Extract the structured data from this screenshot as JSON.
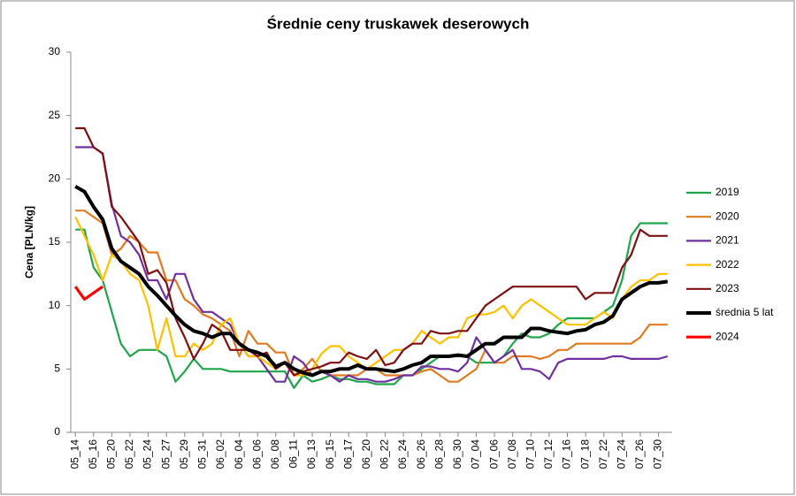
{
  "chart_data": {
    "type": "line",
    "title": "Średnie ceny truskawek deserowych",
    "y_label": "Cena [PLN/kg]",
    "categories": [
      "05_14",
      null,
      "05_16",
      null,
      "05_20",
      null,
      "05_22",
      null,
      "05_24",
      null,
      "05_27",
      null,
      "05_29",
      null,
      "05_31",
      null,
      "06_02",
      null,
      "06_04",
      null,
      "06_06",
      null,
      "06_08",
      null,
      "06_11",
      null,
      "06_13",
      null,
      "06_15",
      null,
      "06_17",
      null,
      "06_20",
      null,
      "06_22",
      null,
      "06_24",
      null,
      "06_26",
      null,
      "06_28",
      null,
      "06_30",
      null,
      "07_04",
      null,
      "07_06",
      null,
      "07_08",
      null,
      "07_10",
      null,
      "07_12",
      null,
      "07_16",
      null,
      "07_18",
      null,
      "07_22",
      null,
      "07_24",
      null,
      "07_26",
      null,
      "07_30",
      null
    ],
    "series": [
      {
        "name": "2019",
        "color": "#1fa64a",
        "width": 2.2,
        "values": [
          16,
          16,
          13,
          12,
          9.5,
          7,
          6,
          6.5,
          6.5,
          6.5,
          6,
          4,
          4.8,
          5.8,
          5,
          5,
          5,
          4.8,
          4.8,
          4.8,
          4.8,
          4.8,
          4.8,
          4.8,
          3.5,
          4.5,
          4,
          4.2,
          4.5,
          4.2,
          4.2,
          4,
          4,
          3.8,
          3.8,
          3.8,
          4.5,
          4.5,
          5,
          5.5,
          6,
          6,
          6,
          6,
          5.5,
          5.5,
          5.5,
          6,
          7,
          7.8,
          7.5,
          7.5,
          7.8,
          8.5,
          9,
          9,
          9,
          9,
          9.5,
          10,
          12,
          15.5,
          16.5,
          16.5,
          16.5,
          16.5
        ]
      },
      {
        "name": "2020",
        "color": "#e07b22",
        "width": 2.2,
        "values": [
          17.5,
          17.5,
          17,
          16.5,
          14,
          14.5,
          15.5,
          15,
          14.2,
          14.2,
          12,
          12,
          10.5,
          10,
          9.3,
          9,
          8.5,
          8,
          6,
          8,
          7,
          7,
          6.3,
          6.3,
          4.5,
          5,
          5.8,
          4.8,
          4.5,
          4.5,
          4.5,
          4.5,
          5,
          5,
          4.5,
          4.5,
          4.5,
          4.5,
          4.8,
          5,
          4.5,
          4,
          4,
          4.5,
          5,
          6.5,
          5.5,
          5.5,
          6,
          6,
          6,
          5.8,
          6,
          6.5,
          6.5,
          7,
          7,
          7,
          7,
          7,
          7,
          7,
          7.5,
          8.5,
          8.5,
          8.5
        ]
      },
      {
        "name": "2021",
        "color": "#7030a0",
        "width": 2.2,
        "values": [
          22.5,
          22.5,
          22.5,
          22,
          18,
          15.5,
          15,
          14,
          12,
          12,
          10.5,
          12.5,
          12.5,
          10.5,
          9.5,
          9.5,
          9,
          8.5,
          7,
          6,
          6,
          5,
          4,
          4,
          6,
          5.5,
          4.5,
          4.8,
          4.5,
          4,
          4.5,
          4.2,
          4.2,
          4,
          4,
          4.2,
          4.5,
          4.5,
          5.2,
          5.2,
          5,
          5,
          4.8,
          5.5,
          7.5,
          6.5,
          5.5,
          6,
          6.5,
          5,
          5,
          4.8,
          4.2,
          5.5,
          5.8,
          5.8,
          5.8,
          5.8,
          5.8,
          6,
          6,
          5.8,
          5.8,
          5.8,
          5.8,
          6
        ]
      },
      {
        "name": "2022",
        "color": "#ffc000",
        "width": 2.2,
        "values": [
          17,
          15.5,
          14,
          12,
          14,
          13.5,
          12.5,
          12,
          10,
          6.5,
          9,
          6,
          6,
          7,
          6.5,
          7,
          8.5,
          9,
          7,
          6,
          6,
          5.5,
          5,
          5.5,
          4.5,
          4.5,
          5,
          6.2,
          6.8,
          6.8,
          6,
          5.5,
          5,
          5.5,
          6,
          6.5,
          6.5,
          7,
          8,
          7.5,
          7,
          7.5,
          7.5,
          9,
          9.3,
          9.3,
          9.5,
          10,
          9,
          10,
          10.5,
          10,
          9.5,
          9,
          8.5,
          8.5,
          8.5,
          9,
          9.5,
          9,
          10.5,
          11.5,
          12,
          12,
          12.5,
          12.5
        ]
      },
      {
        "name": "2023",
        "color": "#7f1010",
        "width": 2.2,
        "values": [
          24,
          24,
          22.5,
          22,
          17.8,
          17,
          16,
          15,
          12.5,
          12.8,
          11.8,
          9,
          7.5,
          5.8,
          7,
          8.5,
          8,
          6.5,
          6.5,
          6.5,
          6,
          6.3,
          5,
          5.5,
          4.5,
          4.8,
          5,
          5.2,
          5.5,
          5.5,
          6.3,
          6,
          5.8,
          6.5,
          5.3,
          5.5,
          6.5,
          7,
          7,
          8,
          7.8,
          7.8,
          8,
          8,
          9,
          10,
          10.5,
          11,
          11.5,
          11.5,
          11.5,
          11.5,
          11.5,
          11.5,
          11.5,
          11.5,
          10.5,
          11,
          11,
          11,
          13,
          14,
          16,
          15.5,
          15.5,
          15.5
        ]
      },
      {
        "name": "średnia 5 lat",
        "color": "#000000",
        "width": 4,
        "values": [
          19.4,
          19,
          17.8,
          16.8,
          14.5,
          13.5,
          13,
          12.5,
          11.5,
          10.8,
          10,
          9.2,
          8.5,
          8,
          7.8,
          7.5,
          7.8,
          7.8,
          7,
          6.5,
          6.3,
          6,
          5.2,
          5.5,
          5,
          4.7,
          4.5,
          4.8,
          4.8,
          5,
          5,
          5.3,
          5,
          5,
          4.9,
          4.8,
          5,
          5.3,
          5.5,
          6,
          6,
          6,
          6.1,
          6,
          6.5,
          7,
          7,
          7.5,
          7.5,
          7.5,
          8.2,
          8.2,
          8,
          7.9,
          7.8,
          8,
          8.1,
          8.5,
          8.7,
          9.2,
          10.5,
          11,
          11.5,
          11.8,
          11.8,
          11.9
        ]
      },
      {
        "name": "2024",
        "color": "#ff0000",
        "width": 3.2,
        "values": [
          11.5,
          10.5,
          11,
          11.5,
          null,
          null,
          null,
          null,
          null,
          null,
          null,
          null,
          null,
          null,
          null,
          null,
          null,
          null,
          null,
          null,
          null,
          null,
          null,
          null,
          null,
          null,
          null,
          null,
          null,
          null,
          null,
          null,
          null,
          null,
          null,
          null,
          null,
          null,
          null,
          null,
          null,
          null,
          null,
          null,
          null,
          null,
          null,
          null,
          null,
          null,
          null,
          null,
          null,
          null,
          null,
          null,
          null,
          null,
          null,
          null,
          null,
          null,
          null,
          null,
          null,
          null
        ]
      }
    ],
    "ylim": [
      0,
      30
    ],
    "yticks": [
      0,
      5,
      10,
      15,
      20,
      25,
      30
    ],
    "grid": false,
    "legend": "right"
  }
}
